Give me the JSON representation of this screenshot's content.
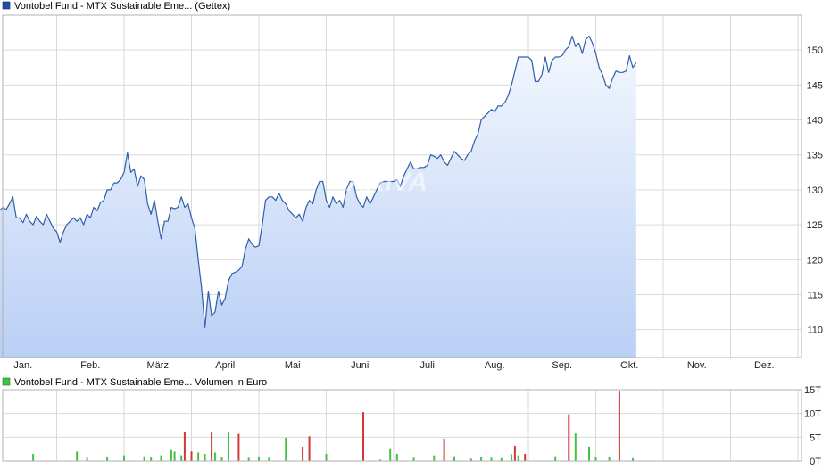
{
  "price_legend": "Vontobel Fund - MTX Sustainable Eme... (Gettex)",
  "volume_legend": "Vontobel Fund - MTX Sustainable Eme... Volumen in Euro",
  "watermark": "ARIVA",
  "colors": {
    "line": "#2f5eaa",
    "fill_top": "#f4f8fe",
    "fill_bottom": "#b9cff5",
    "volume_up": "#44c244",
    "volume_down": "#d03838",
    "legend_price": "#1f4fa5",
    "legend_volume": "#44c244"
  },
  "chart_data": [
    {
      "type": "area",
      "title": "Vontobel Fund - MTX Sustainable Eme... (Gettex)",
      "x_ticks": [
        "Jan.",
        "Feb.",
        "März",
        "April",
        "Mai",
        "Juni",
        "Juli",
        "Aug.",
        "Sep.",
        "Okt.",
        "Nov.",
        "Dez."
      ],
      "x_range": [
        0,
        12
      ],
      "ylim": [
        106,
        155
      ],
      "y_ticks": [
        110,
        115,
        120,
        125,
        130,
        135,
        140,
        145,
        150
      ],
      "grid": true,
      "points": [
        [
          0.0,
          123.5
        ],
        [
          0.05,
          125
        ],
        [
          0.1,
          125.3
        ],
        [
          0.15,
          127
        ],
        [
          0.2,
          127.5
        ],
        [
          0.25,
          127.2
        ],
        [
          0.3,
          128
        ],
        [
          0.35,
          129
        ],
        [
          0.4,
          126
        ],
        [
          0.45,
          126
        ],
        [
          0.5,
          125.3
        ],
        [
          0.55,
          126.5
        ],
        [
          0.6,
          125.5
        ],
        [
          0.65,
          125
        ],
        [
          0.7,
          126.2
        ],
        [
          0.75,
          125.5
        ],
        [
          0.8,
          125
        ],
        [
          0.85,
          126.5
        ],
        [
          0.9,
          125.5
        ],
        [
          0.95,
          124.5
        ],
        [
          1.0,
          124
        ],
        [
          1.05,
          122.5
        ],
        [
          1.1,
          124
        ],
        [
          1.15,
          125
        ],
        [
          1.2,
          125.5
        ],
        [
          1.25,
          126
        ],
        [
          1.3,
          125.5
        ],
        [
          1.35,
          126
        ],
        [
          1.4,
          125
        ],
        [
          1.45,
          126.5
        ],
        [
          1.5,
          126
        ],
        [
          1.55,
          127.5
        ],
        [
          1.6,
          127
        ],
        [
          1.65,
          128.2
        ],
        [
          1.7,
          128.5
        ],
        [
          1.75,
          130
        ],
        [
          1.8,
          130
        ],
        [
          1.85,
          131
        ],
        [
          1.9,
          131
        ],
        [
          1.95,
          131.5
        ],
        [
          2.0,
          132.5
        ],
        [
          2.05,
          135.3
        ],
        [
          2.1,
          132.5
        ],
        [
          2.15,
          133
        ],
        [
          2.2,
          130.5
        ],
        [
          2.25,
          132
        ],
        [
          2.3,
          131.5
        ],
        [
          2.35,
          128
        ],
        [
          2.4,
          126.5
        ],
        [
          2.45,
          128.5
        ],
        [
          2.5,
          125.5
        ],
        [
          2.55,
          123
        ],
        [
          2.6,
          125.5
        ],
        [
          2.65,
          125.5
        ],
        [
          2.7,
          127.5
        ],
        [
          2.75,
          127.3
        ],
        [
          2.8,
          127.5
        ],
        [
          2.85,
          129
        ],
        [
          2.9,
          127.5
        ],
        [
          2.95,
          128
        ],
        [
          3.0,
          126
        ],
        [
          3.05,
          124.5
        ],
        [
          3.1,
          120
        ],
        [
          3.15,
          116
        ],
        [
          3.2,
          110.3
        ],
        [
          3.25,
          115.5
        ],
        [
          3.3,
          112
        ],
        [
          3.35,
          112.5
        ],
        [
          3.4,
          115.5
        ],
        [
          3.45,
          113.5
        ],
        [
          3.5,
          114.5
        ],
        [
          3.55,
          117
        ],
        [
          3.6,
          118
        ],
        [
          3.65,
          118.2
        ],
        [
          3.7,
          118.5
        ],
        [
          3.75,
          119
        ],
        [
          3.8,
          121.5
        ],
        [
          3.85,
          123
        ],
        [
          3.9,
          122.2
        ],
        [
          3.95,
          121.8
        ],
        [
          4.0,
          122
        ],
        [
          4.05,
          125
        ],
        [
          4.1,
          128.5
        ],
        [
          4.15,
          129
        ],
        [
          4.2,
          129
        ],
        [
          4.25,
          128.5
        ],
        [
          4.3,
          129.5
        ],
        [
          4.35,
          128.5
        ],
        [
          4.4,
          128
        ],
        [
          4.45,
          127
        ],
        [
          4.5,
          126.5
        ],
        [
          4.55,
          126
        ],
        [
          4.6,
          126.5
        ],
        [
          4.65,
          125.5
        ],
        [
          4.7,
          127.5
        ],
        [
          4.75,
          128.5
        ],
        [
          4.8,
          128
        ],
        [
          4.85,
          130
        ],
        [
          4.9,
          131.2
        ],
        [
          4.95,
          131.2
        ],
        [
          5.0,
          128.5
        ],
        [
          5.05,
          127.5
        ],
        [
          5.1,
          129
        ],
        [
          5.15,
          128
        ],
        [
          5.2,
          128.5
        ],
        [
          5.25,
          127.5
        ],
        [
          5.3,
          130
        ],
        [
          5.35,
          131.2
        ],
        [
          5.4,
          131.2
        ],
        [
          5.45,
          129
        ],
        [
          5.5,
          128
        ],
        [
          5.55,
          127.5
        ],
        [
          5.6,
          129
        ],
        [
          5.65,
          128
        ],
        [
          5.7,
          129
        ],
        [
          5.75,
          130
        ],
        [
          5.8,
          131
        ],
        [
          5.85,
          131.2
        ],
        [
          5.9,
          131.2
        ],
        [
          5.95,
          131.2
        ],
        [
          6.0,
          131.2
        ],
        [
          6.05,
          131.5
        ],
        [
          6.1,
          130.5
        ],
        [
          6.15,
          132
        ],
        [
          6.2,
          133
        ],
        [
          6.25,
          134
        ],
        [
          6.3,
          133
        ],
        [
          6.35,
          133
        ],
        [
          6.4,
          133.2
        ],
        [
          6.45,
          133.2
        ],
        [
          6.5,
          133.5
        ],
        [
          6.55,
          135
        ],
        [
          6.6,
          134.8
        ],
        [
          6.65,
          134.5
        ],
        [
          6.7,
          135
        ],
        [
          6.75,
          134
        ],
        [
          6.8,
          133.5
        ],
        [
          6.85,
          134.5
        ],
        [
          6.9,
          135.5
        ],
        [
          6.95,
          135
        ],
        [
          7.0,
          134.5
        ],
        [
          7.05,
          134.2
        ],
        [
          7.1,
          135
        ],
        [
          7.15,
          135.5
        ],
        [
          7.2,
          137
        ],
        [
          7.25,
          138
        ],
        [
          7.3,
          140
        ],
        [
          7.35,
          140.5
        ],
        [
          7.4,
          141
        ],
        [
          7.45,
          141.5
        ],
        [
          7.5,
          141.2
        ],
        [
          7.55,
          142
        ],
        [
          7.6,
          142
        ],
        [
          7.65,
          142.5
        ],
        [
          7.7,
          143.5
        ],
        [
          7.75,
          145
        ],
        [
          7.8,
          147
        ],
        [
          7.85,
          149
        ],
        [
          7.9,
          149
        ],
        [
          7.95,
          149
        ],
        [
          8.0,
          149
        ],
        [
          8.05,
          148.5
        ],
        [
          8.1,
          145.5
        ],
        [
          8.15,
          145.5
        ],
        [
          8.2,
          146.5
        ],
        [
          8.25,
          149
        ],
        [
          8.3,
          146.8
        ],
        [
          8.35,
          148.5
        ],
        [
          8.4,
          149
        ],
        [
          8.45,
          149
        ],
        [
          8.5,
          149.2
        ],
        [
          8.55,
          150
        ],
        [
          8.6,
          150.5
        ],
        [
          8.65,
          152
        ],
        [
          8.7,
          150.5
        ],
        [
          8.75,
          151
        ],
        [
          8.8,
          149.5
        ],
        [
          8.85,
          151.5
        ],
        [
          8.9,
          152
        ],
        [
          8.95,
          151
        ],
        [
          9.0,
          149.5
        ],
        [
          9.05,
          147.5
        ],
        [
          9.1,
          146.5
        ],
        [
          9.15,
          145
        ],
        [
          9.2,
          144.5
        ],
        [
          9.25,
          146
        ],
        [
          9.3,
          147
        ],
        [
          9.35,
          146.8
        ],
        [
          9.4,
          146.8
        ],
        [
          9.45,
          147
        ],
        [
          9.5,
          149.2
        ],
        [
          9.55,
          147.5
        ],
        [
          9.6,
          148.2
        ]
      ]
    },
    {
      "type": "bar",
      "title": "Vontobel Fund - MTX Sustainable Eme... Volumen in Euro",
      "ylim": [
        0,
        15000
      ],
      "y_ticks": [
        "0T",
        "5T",
        "10T",
        "15T"
      ],
      "y_tick_values": [
        0,
        5000,
        10000,
        15000
      ],
      "bars": [
        {
          "x": 0.65,
          "v": 1500,
          "c": "up"
        },
        {
          "x": 1.3,
          "v": 2000,
          "c": "up"
        },
        {
          "x": 1.45,
          "v": 800,
          "c": "up"
        },
        {
          "x": 1.75,
          "v": 900,
          "c": "up"
        },
        {
          "x": 2.0,
          "v": 1200,
          "c": "up"
        },
        {
          "x": 2.3,
          "v": 1000,
          "c": "up"
        },
        {
          "x": 2.4,
          "v": 900,
          "c": "up"
        },
        {
          "x": 2.55,
          "v": 1200,
          "c": "up"
        },
        {
          "x": 2.7,
          "v": 2300,
          "c": "up"
        },
        {
          "x": 2.75,
          "v": 2000,
          "c": "up"
        },
        {
          "x": 2.85,
          "v": 1200,
          "c": "up"
        },
        {
          "x": 2.9,
          "v": 6000,
          "c": "down"
        },
        {
          "x": 3.0,
          "v": 2000,
          "c": "down"
        },
        {
          "x": 3.1,
          "v": 1800,
          "c": "up"
        },
        {
          "x": 3.2,
          "v": 1500,
          "c": "up"
        },
        {
          "x": 3.3,
          "v": 6000,
          "c": "down"
        },
        {
          "x": 3.35,
          "v": 1800,
          "c": "up"
        },
        {
          "x": 3.45,
          "v": 900,
          "c": "up"
        },
        {
          "x": 3.55,
          "v": 6200,
          "c": "up"
        },
        {
          "x": 3.7,
          "v": 5700,
          "c": "down"
        },
        {
          "x": 3.85,
          "v": 700,
          "c": "up"
        },
        {
          "x": 4.0,
          "v": 900,
          "c": "up"
        },
        {
          "x": 4.15,
          "v": 700,
          "c": "up"
        },
        {
          "x": 4.4,
          "v": 4900,
          "c": "up"
        },
        {
          "x": 4.65,
          "v": 3000,
          "c": "down"
        },
        {
          "x": 4.75,
          "v": 5200,
          "c": "down"
        },
        {
          "x": 5.0,
          "v": 1500,
          "c": "up"
        },
        {
          "x": 5.55,
          "v": 10300,
          "c": "down"
        },
        {
          "x": 5.8,
          "v": 300,
          "c": "up"
        },
        {
          "x": 5.95,
          "v": 2500,
          "c": "up"
        },
        {
          "x": 6.05,
          "v": 1500,
          "c": "up"
        },
        {
          "x": 6.3,
          "v": 700,
          "c": "up"
        },
        {
          "x": 6.6,
          "v": 1200,
          "c": "up"
        },
        {
          "x": 6.75,
          "v": 4700,
          "c": "down"
        },
        {
          "x": 6.9,
          "v": 1000,
          "c": "up"
        },
        {
          "x": 7.15,
          "v": 500,
          "c": "up"
        },
        {
          "x": 7.3,
          "v": 800,
          "c": "up"
        },
        {
          "x": 7.45,
          "v": 700,
          "c": "up"
        },
        {
          "x": 7.6,
          "v": 600,
          "c": "up"
        },
        {
          "x": 7.75,
          "v": 1400,
          "c": "up"
        },
        {
          "x": 7.8,
          "v": 3200,
          "c": "down"
        },
        {
          "x": 7.85,
          "v": 1200,
          "c": "up"
        },
        {
          "x": 7.95,
          "v": 1500,
          "c": "down"
        },
        {
          "x": 8.4,
          "v": 1000,
          "c": "up"
        },
        {
          "x": 8.6,
          "v": 9800,
          "c": "down"
        },
        {
          "x": 8.7,
          "v": 5800,
          "c": "up"
        },
        {
          "x": 8.9,
          "v": 3000,
          "c": "up"
        },
        {
          "x": 9.0,
          "v": 800,
          "c": "up"
        },
        {
          "x": 9.2,
          "v": 800,
          "c": "up"
        },
        {
          "x": 9.35,
          "v": 14600,
          "c": "down"
        },
        {
          "x": 9.55,
          "v": 600,
          "c": "up"
        }
      ]
    }
  ]
}
